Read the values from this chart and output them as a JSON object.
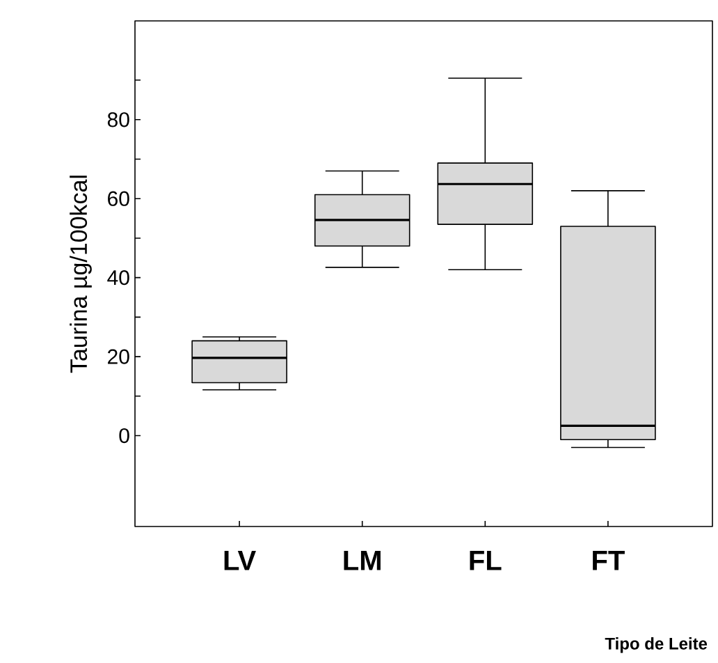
{
  "chart_data": {
    "type": "box",
    "categories": [
      "LV",
      "LM",
      "FL",
      "FT"
    ],
    "xlabel": "Tipo de Leite",
    "ylabel": "Taurina µg/100kcal",
    "color": "#d9d9d9",
    "ylim": [
      -23,
      105
    ],
    "yticks": [
      0,
      {
        "value": 10,
        "label": null
      },
      20,
      {
        "value": 30,
        "label": null
      },
      40,
      {
        "value": 50,
        "label": null
      },
      60,
      {
        "value": 70,
        "label": null
      },
      80,
      {
        "value": 90,
        "label": null
      }
    ],
    "boxes": [
      {
        "low": 11.6,
        "q1": 13.4,
        "median": 19.7,
        "q3": 24,
        "high": 25
      },
      {
        "low": 42.6,
        "q1": 48,
        "median": 54.6,
        "q3": 61,
        "high": 67
      },
      {
        "low": 42,
        "q1": 53.5,
        "median": 63.7,
        "q3": 69,
        "high": 90.5
      },
      {
        "low": -3,
        "q1": -1,
        "median": 2.5,
        "q3": 53,
        "high": 62
      }
    ],
    "grid": false
  }
}
